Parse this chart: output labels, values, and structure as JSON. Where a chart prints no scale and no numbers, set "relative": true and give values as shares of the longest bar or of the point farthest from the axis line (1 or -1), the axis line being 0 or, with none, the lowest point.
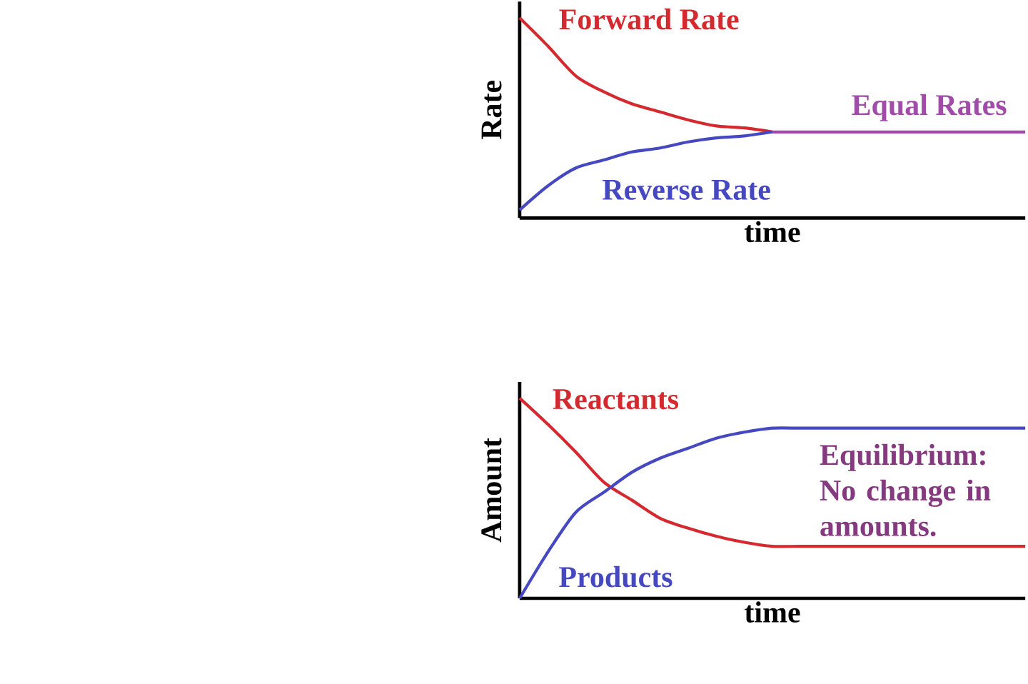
{
  "chart_data": [
    {
      "type": "line",
      "relative": true,
      "xlabel": "time",
      "ylabel": "Rate",
      "categories": [
        null,
        null,
        null,
        null,
        null,
        null,
        null,
        null,
        null,
        null,
        null,
        null,
        null,
        null,
        null,
        null,
        null,
        null,
        null
      ],
      "series": [
        {
          "name": "Forward Rate",
          "color": "#d42a2f",
          "values": [
            1.0,
            0.86,
            0.71,
            0.63,
            0.57,
            0.53,
            0.49,
            0.46,
            0.45,
            0.43,
            null,
            null,
            null,
            null,
            null,
            null,
            null,
            null,
            null
          ]
        },
        {
          "name": "Reverse Rate",
          "color": "#4548c0",
          "values": [
            0.04,
            0.16,
            0.25,
            0.29,
            0.33,
            0.35,
            0.38,
            0.4,
            0.41,
            0.43,
            null,
            null,
            null,
            null,
            null,
            null,
            null,
            null,
            null
          ]
        },
        {
          "name": "Equal Rates",
          "color": "#a04ca8",
          "values": [
            null,
            null,
            null,
            null,
            null,
            null,
            null,
            null,
            null,
            0.43,
            0.43,
            0.43,
            0.43,
            0.43,
            0.43,
            0.43,
            0.43,
            0.43,
            0.43
          ]
        }
      ]
    },
    {
      "type": "line",
      "relative": true,
      "xlabel": "time",
      "ylabel": "Amount",
      "categories": [
        null,
        null,
        null,
        null,
        null,
        null,
        null,
        null,
        null,
        null,
        null,
        null,
        null,
        null,
        null,
        null,
        null,
        null,
        null
      ],
      "series": [
        {
          "name": "Reactants",
          "color": "#d42a2f",
          "values": [
            1.0,
            0.87,
            0.73,
            0.58,
            0.49,
            0.4,
            0.35,
            0.31,
            0.28,
            0.26,
            0.26,
            0.26,
            0.26,
            0.26,
            0.26,
            0.26,
            0.26,
            0.26,
            0.26
          ]
        },
        {
          "name": "Products",
          "color": "#4548c0",
          "values": [
            0.0,
            0.23,
            0.43,
            0.53,
            0.63,
            0.7,
            0.75,
            0.8,
            0.83,
            0.85,
            0.85,
            0.85,
            0.85,
            0.85,
            0.85,
            0.85,
            0.85,
            0.85,
            0.85
          ]
        }
      ],
      "annotations": [
        "Equilibrium: No change in amounts."
      ]
    }
  ]
}
